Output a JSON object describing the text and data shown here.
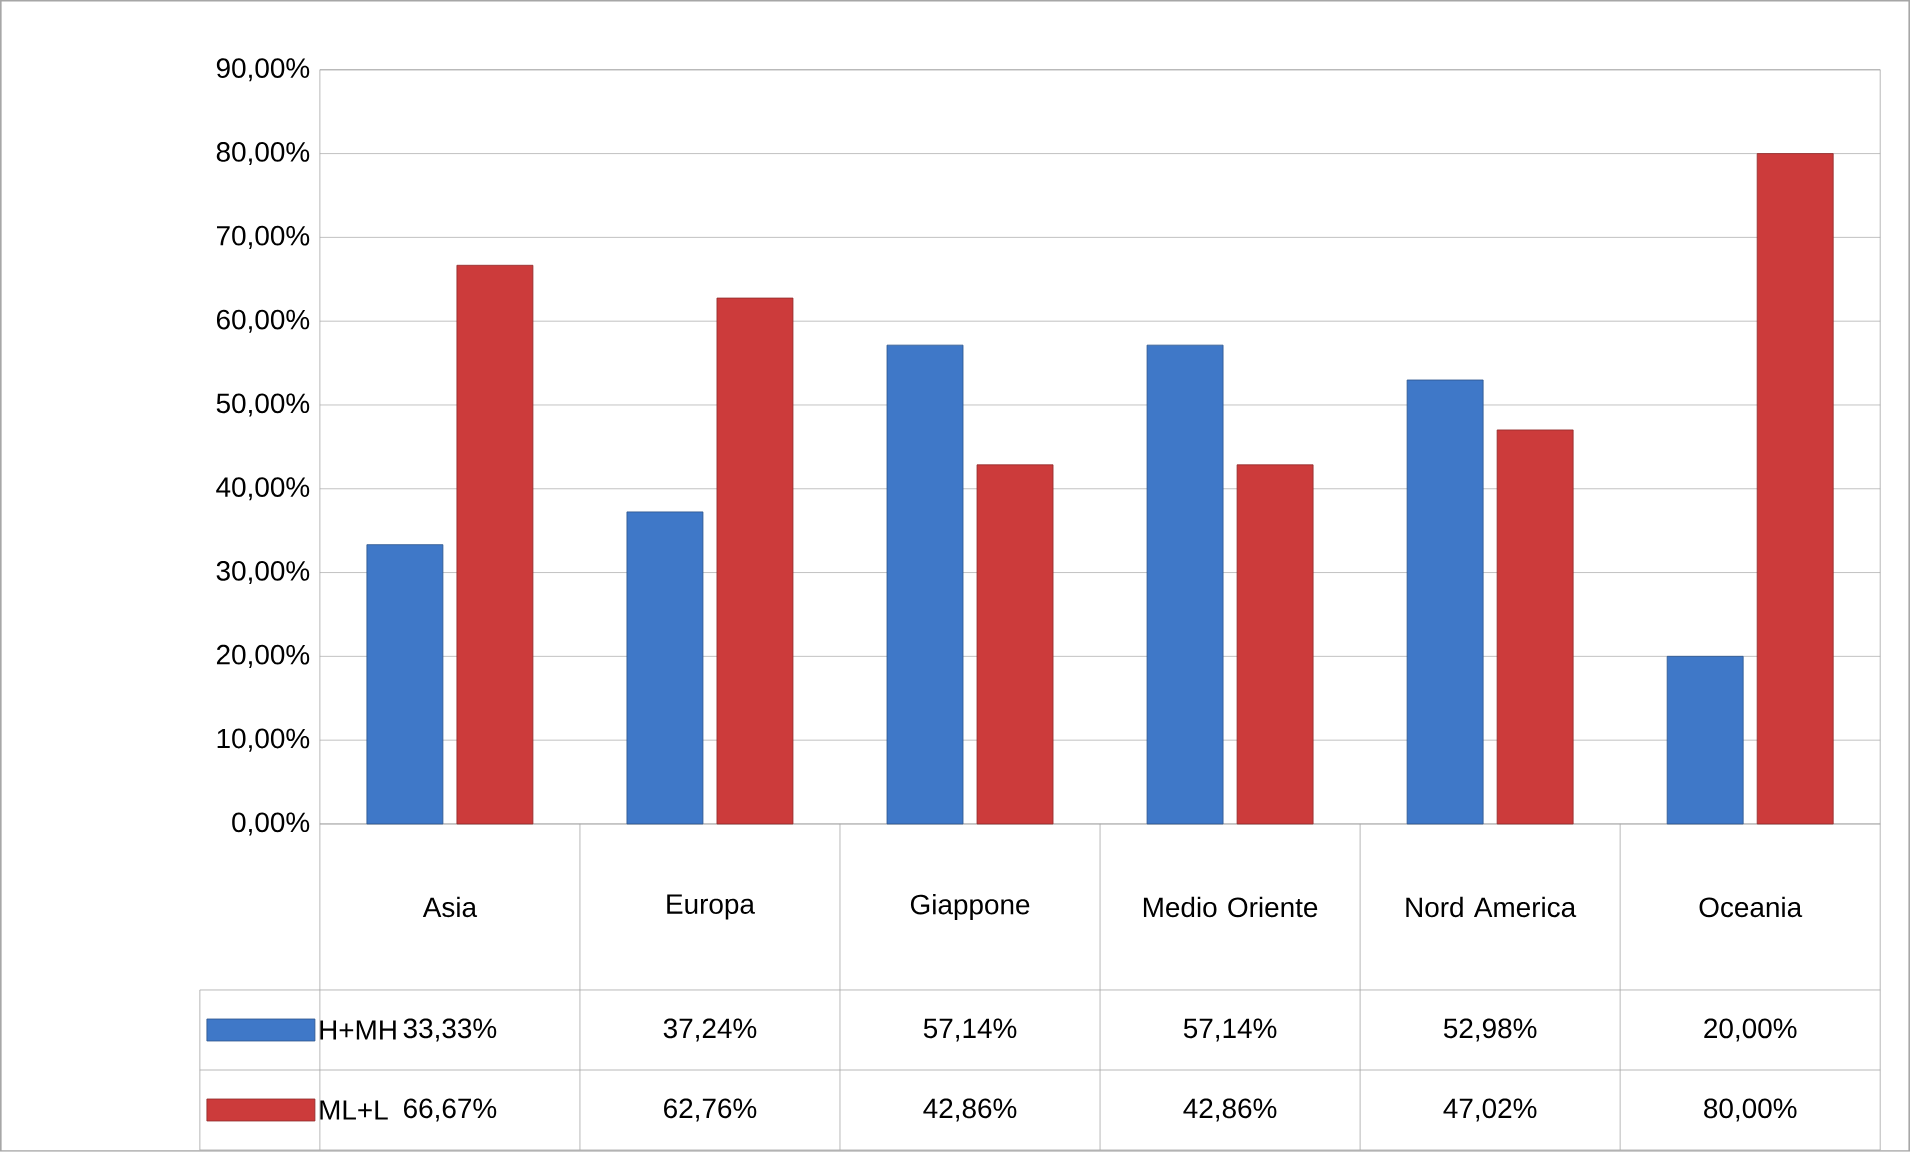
{
  "chart_data": {
    "type": "bar",
    "categories": [
      "Asia",
      "Europa",
      "Giappone",
      "Medio Oriente",
      "Nord America",
      "Oceania"
    ],
    "series": [
      {
        "name": "H+MH",
        "color": "#3f78c8",
        "values": [
          33.33,
          37.24,
          57.14,
          57.14,
          52.98,
          20.0
        ],
        "value_labels": [
          "33,33%",
          "37,24%",
          "57,14%",
          "57,14%",
          "52,98%",
          "20,00%"
        ]
      },
      {
        "name": "ML+L",
        "color": "#cc3b3b",
        "values": [
          66.67,
          62.76,
          42.86,
          42.86,
          47.02,
          80.0
        ],
        "value_labels": [
          "66,67%",
          "62,76%",
          "42,86%",
          "42,86%",
          "47,02%",
          "80,00%"
        ]
      }
    ],
    "ylim": [
      0,
      90
    ],
    "yticks": [
      {
        "value": 0,
        "label": "0,00%"
      },
      {
        "value": 10,
        "label": "10,00%"
      },
      {
        "value": 20,
        "label": "20,00%"
      },
      {
        "value": 30,
        "label": "30,00%"
      },
      {
        "value": 40,
        "label": "40,00%"
      },
      {
        "value": 50,
        "label": "50,00%"
      },
      {
        "value": 60,
        "label": "60,00%"
      },
      {
        "value": 70,
        "label": "70,00%"
      },
      {
        "value": 80,
        "label": "80,00%"
      },
      {
        "value": 90,
        "label": "90,00%"
      }
    ],
    "grid": "y",
    "legend": "bottom left"
  }
}
